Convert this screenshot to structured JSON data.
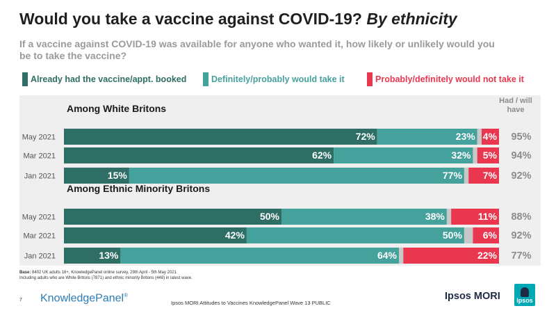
{
  "title_main": "Would you take a vaccine against COVID-19?",
  "title_italic": "By ethnicity",
  "subtitle": "If a vaccine against COVID-19 was available for anyone who wanted it, how likely or unlikely would you be to take the vaccine?",
  "had_will_have_label": "Had / will have",
  "footnote": {
    "base_label": "Base:",
    "base_text": "8402 UK adults 16+, KnowledgePanel online survey, 29th April - 5th May 2021",
    "line2": "Including adults who are White Britons (7871) and ethnic minority Britons (448) in latest wave."
  },
  "page_number": "7",
  "knowledgepanel_logo": "KnowledgePanel",
  "registered_mark": "®",
  "footer_text": "Ipsos MORI Attitudes to Vaccines KnowledgePanel Wave 13 PUBLIC",
  "ipsos_logo_text": "Ipsos MORI",
  "ipsos_badge_text": "Ipsos",
  "colors": {
    "already": "#2e6e65",
    "would": "#45a19b",
    "other": "#c8c8c8",
    "not": "#e8374f",
    "total": "#8c8c8c"
  },
  "chart_data": {
    "type": "bar",
    "orientation": "horizontal",
    "stacked": true,
    "xlim": [
      0,
      100
    ],
    "legend": [
      {
        "key": "already",
        "label": "Already had the vaccine/appt. booked"
      },
      {
        "key": "would",
        "label": "Definitely/probably would take it"
      },
      {
        "key": "not",
        "label": "Probably/definitely would not take it"
      }
    ],
    "groups": [
      {
        "name": "Among White Britons",
        "rows": [
          {
            "label": "May 2021",
            "already": 72,
            "would": 23,
            "not": 4,
            "total": "95%"
          },
          {
            "label": "Mar 2021",
            "already": 62,
            "would": 32,
            "not": 5,
            "total": "94%"
          },
          {
            "label": "Jan 2021",
            "already": 15,
            "would": 77,
            "not": 7,
            "total": "92%"
          }
        ]
      },
      {
        "name": "Among Ethnic Minority Britons",
        "rows": [
          {
            "label": "May 2021",
            "already": 50,
            "would": 38,
            "not": 11,
            "total": "88%"
          },
          {
            "label": "Mar 2021",
            "already": 42,
            "would": 50,
            "not": 6,
            "total": "92%"
          },
          {
            "label": "Jan 2021",
            "already": 13,
            "would": 64,
            "not": 22,
            "total": "77%"
          }
        ]
      }
    ]
  }
}
